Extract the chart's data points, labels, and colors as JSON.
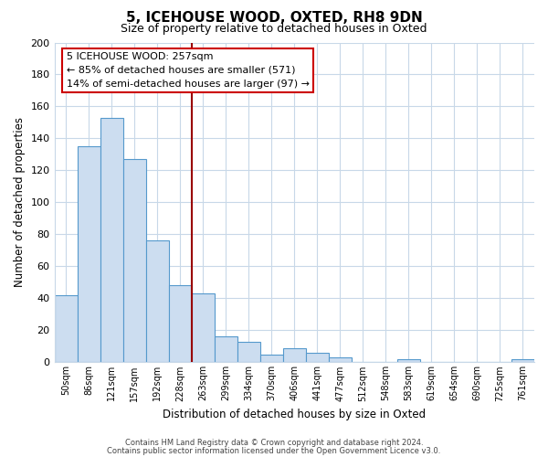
{
  "title": "5, ICEHOUSE WOOD, OXTED, RH8 9DN",
  "subtitle": "Size of property relative to detached houses in Oxted",
  "xlabel": "Distribution of detached houses by size in Oxted",
  "ylabel": "Number of detached properties",
  "bar_labels": [
    "50sqm",
    "86sqm",
    "121sqm",
    "157sqm",
    "192sqm",
    "228sqm",
    "263sqm",
    "299sqm",
    "334sqm",
    "370sqm",
    "406sqm",
    "441sqm",
    "477sqm",
    "512sqm",
    "548sqm",
    "583sqm",
    "619sqm",
    "654sqm",
    "690sqm",
    "725sqm",
    "761sqm"
  ],
  "bar_values": [
    42,
    135,
    153,
    127,
    76,
    48,
    43,
    16,
    13,
    5,
    9,
    6,
    3,
    0,
    0,
    2,
    0,
    0,
    0,
    0,
    2
  ],
  "bar_color": "#ccddf0",
  "bar_edge_color": "#5599cc",
  "vline_index": 6,
  "vline_color": "#990000",
  "annotation_text": "5 ICEHOUSE WOOD: 257sqm\n← 85% of detached houses are smaller (571)\n14% of semi-detached houses are larger (97) →",
  "annotation_box_color": "#ffffff",
  "annotation_box_edge_color": "#cc0000",
  "ylim": [
    0,
    200
  ],
  "yticks": [
    0,
    20,
    40,
    60,
    80,
    100,
    120,
    140,
    160,
    180,
    200
  ],
  "footer1": "Contains HM Land Registry data © Crown copyright and database right 2024.",
  "footer2": "Contains public sector information licensed under the Open Government Licence v3.0.",
  "background_color": "#ffffff",
  "grid_color": "#c8d8e8",
  "title_fontsize": 11,
  "subtitle_fontsize": 9
}
